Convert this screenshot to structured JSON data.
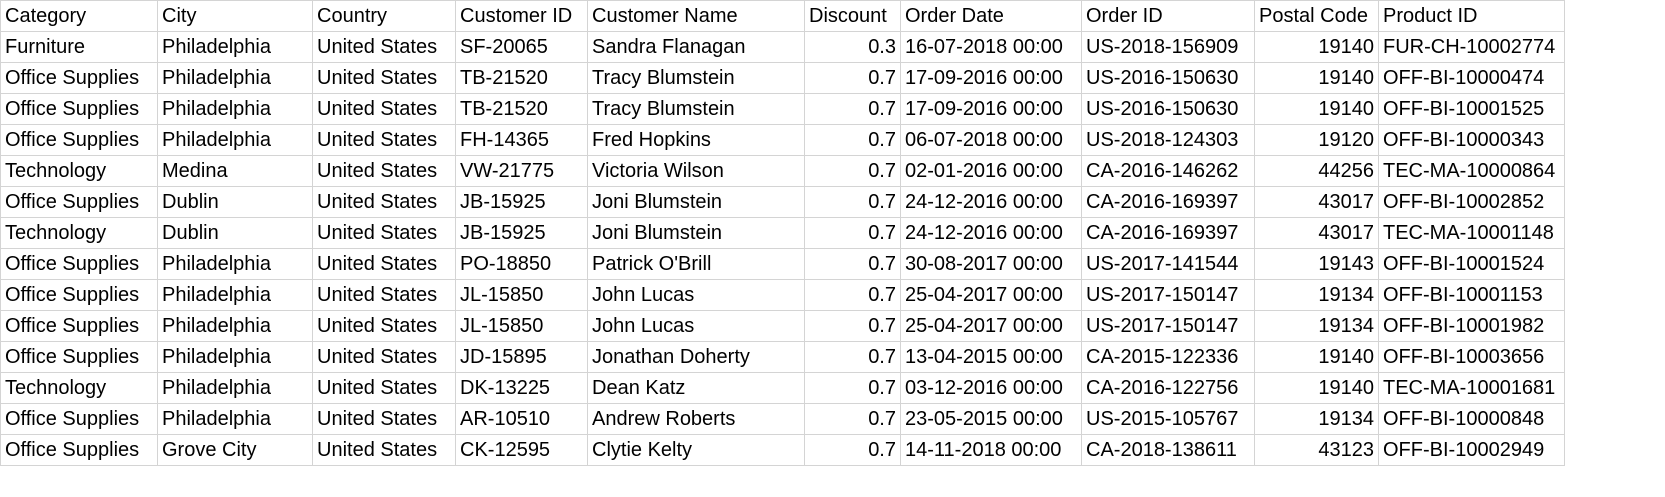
{
  "sheet": {
    "headers": [
      "Category",
      "City",
      "Country",
      "Customer ID",
      "Customer Name",
      "Discount",
      "Order Date",
      "Order ID",
      "Postal Code",
      "Product ID"
    ],
    "rows": [
      [
        "Furniture",
        "Philadelphia",
        "United States",
        "SF-20065",
        "Sandra Flanagan",
        "0.3",
        "16-07-2018 00:00",
        "US-2018-156909",
        "19140",
        "FUR-CH-10002774"
      ],
      [
        "Office Supplies",
        "Philadelphia",
        "United States",
        "TB-21520",
        "Tracy Blumstein",
        "0.7",
        "17-09-2016 00:00",
        "US-2016-150630",
        "19140",
        "OFF-BI-10000474"
      ],
      [
        "Office Supplies",
        "Philadelphia",
        "United States",
        "TB-21520",
        "Tracy Blumstein",
        "0.7",
        "17-09-2016 00:00",
        "US-2016-150630",
        "19140",
        "OFF-BI-10001525"
      ],
      [
        "Office Supplies",
        "Philadelphia",
        "United States",
        "FH-14365",
        "Fred Hopkins",
        "0.7",
        "06-07-2018 00:00",
        "US-2018-124303",
        "19120",
        "OFF-BI-10000343"
      ],
      [
        "Technology",
        "Medina",
        "United States",
        "VW-21775",
        "Victoria Wilson",
        "0.7",
        "02-01-2016 00:00",
        "CA-2016-146262",
        "44256",
        "TEC-MA-10000864"
      ],
      [
        "Office Supplies",
        "Dublin",
        "United States",
        "JB-15925",
        "Joni Blumstein",
        "0.7",
        "24-12-2016 00:00",
        "CA-2016-169397",
        "43017",
        "OFF-BI-10002852"
      ],
      [
        "Technology",
        "Dublin",
        "United States",
        "JB-15925",
        "Joni Blumstein",
        "0.7",
        "24-12-2016 00:00",
        "CA-2016-169397",
        "43017",
        "TEC-MA-10001148"
      ],
      [
        "Office Supplies",
        "Philadelphia",
        "United States",
        "PO-18850",
        "Patrick O'Brill",
        "0.7",
        "30-08-2017 00:00",
        "US-2017-141544",
        "19143",
        "OFF-BI-10001524"
      ],
      [
        "Office Supplies",
        "Philadelphia",
        "United States",
        "JL-15850",
        "John Lucas",
        "0.7",
        "25-04-2017 00:00",
        "US-2017-150147",
        "19134",
        "OFF-BI-10001153"
      ],
      [
        "Office Supplies",
        "Philadelphia",
        "United States",
        "JL-15850",
        "John Lucas",
        "0.7",
        "25-04-2017 00:00",
        "US-2017-150147",
        "19134",
        "OFF-BI-10001982"
      ],
      [
        "Office Supplies",
        "Philadelphia",
        "United States",
        "JD-15895",
        "Jonathan Doherty",
        "0.7",
        "13-04-2015 00:00",
        "CA-2015-122336",
        "19140",
        "OFF-BI-10003656"
      ],
      [
        "Technology",
        "Philadelphia",
        "United States",
        "DK-13225",
        "Dean Katz",
        "0.7",
        "03-12-2016 00:00",
        "CA-2016-122756",
        "19140",
        "TEC-MA-10001681"
      ],
      [
        "Office Supplies",
        "Philadelphia",
        "United States",
        "AR-10510",
        "Andrew Roberts",
        "0.7",
        "23-05-2015 00:00",
        "US-2015-105767",
        "19134",
        "OFF-BI-10000848"
      ],
      [
        "Office Supplies",
        "Grove City",
        "United States",
        "CK-12595",
        "Clytie Kelty",
        "0.7",
        "14-11-2018 00:00",
        "CA-2018-138611",
        "43123",
        "OFF-BI-10002949"
      ]
    ],
    "numeric_columns": [
      5,
      8
    ],
    "colors": {
      "gridline": "#d4d4d4",
      "text": "#000000",
      "background": "#ffffff"
    }
  }
}
